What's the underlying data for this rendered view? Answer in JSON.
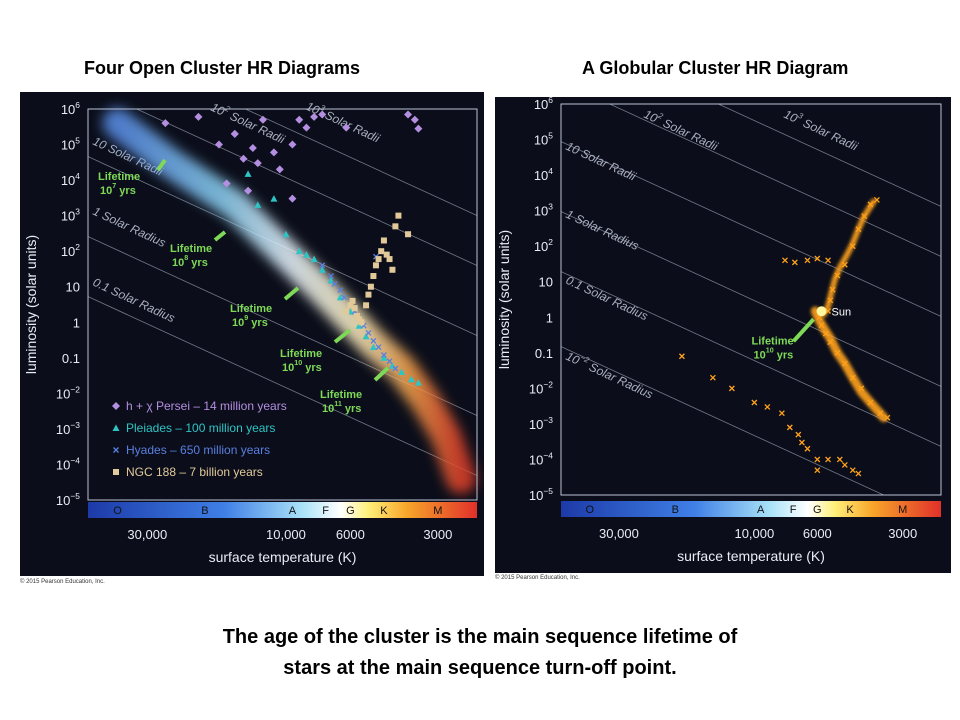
{
  "titles": {
    "left": "Four Open Cluster HR Diagrams",
    "right": "A Globular Cluster HR Diagram"
  },
  "copyright": "© 2015 Pearson Education, Inc.",
  "caption": {
    "line1": "The age of the cluster is the main sequence lifetime of",
    "line2": "stars at the main sequence turn-off point."
  },
  "colors": {
    "panel_bg": "#0b0e1a",
    "lifetime_green": "#7ed957",
    "persei": "#b48ee0",
    "pleiades": "#2ec4c4",
    "hyades": "#5a7fe0",
    "ngc188": "#e2c99a",
    "globular": "#ffa21a",
    "sun": "#fff6a0"
  },
  "chart_data": [
    {
      "type": "scatter",
      "title": "Four Open Cluster HR Diagrams",
      "xlabel": "surface temperature (K)",
      "ylabel": "luminosity (solar units)",
      "x_scale": "log, reversed",
      "x_ticks": [
        "30,000",
        "10,000",
        "6000",
        "3000"
      ],
      "y_ticks": [
        {
          "base": "10",
          "exp": "6"
        },
        {
          "base": "10",
          "exp": "5"
        },
        {
          "base": "10",
          "exp": "4"
        },
        {
          "base": "10",
          "exp": "3"
        },
        {
          "base": "10",
          "exp": "2"
        },
        {
          "base": "10",
          "exp": ""
        },
        {
          "base": "1",
          "exp": ""
        },
        {
          "base": "0.1",
          "exp": ""
        },
        {
          "base": "10",
          "exp": "−2"
        },
        {
          "base": "10",
          "exp": "−3"
        },
        {
          "base": "10",
          "exp": "−4"
        },
        {
          "base": "10",
          "exp": "−5"
        }
      ],
      "spectral_classes": [
        "O",
        "B",
        "A",
        "F",
        "G",
        "K",
        "M"
      ],
      "radius_lines": [
        {
          "base": "10",
          "exp": "2",
          "suffix": " Solar Radii"
        },
        {
          "base": "10",
          "exp": "3",
          "suffix": " Solar Radii"
        },
        {
          "base": "10",
          "exp": "",
          "suffix": " Solar Radii"
        },
        {
          "base": "1",
          "exp": "",
          "suffix": " Solar Radius"
        },
        {
          "base": "0.1",
          "exp": "",
          "suffix": " Solar Radius"
        }
      ],
      "lifetimes": [
        {
          "l1": "Lifetime",
          "base": "10",
          "exp": "7",
          "unit": " yrs"
        },
        {
          "l1": "Lifetime",
          "base": "10",
          "exp": "8",
          "unit": " yrs"
        },
        {
          "l1": "Lifetime",
          "base": "10",
          "exp": "9",
          "unit": " yrs"
        },
        {
          "l1": "Lifetime",
          "base": "10",
          "exp": "10",
          "unit": " yrs"
        },
        {
          "l1": "Lifetime",
          "base": "10",
          "exp": "11",
          "unit": " yrs"
        }
      ],
      "legend_placement": "bottom-left",
      "series": [
        {
          "name": "h + χ Persei – 14 million years",
          "marker": "diamond",
          "color": "#b48ee0",
          "points": [
            [
              26000,
              400000
            ],
            [
              20000,
              600000
            ],
            [
              15000,
              200000
            ],
            [
              12000,
              500000
            ],
            [
              9000,
              500000
            ],
            [
              8500,
              300000
            ],
            [
              8000,
              600000
            ],
            [
              13000,
              80000
            ],
            [
              11000,
              60000
            ],
            [
              9500,
              100000
            ],
            [
              12500,
              30000
            ],
            [
              7500,
              700000
            ],
            [
              6200,
              300000
            ],
            [
              3800,
              700000
            ],
            [
              3600,
              500000
            ],
            [
              3500,
              280000
            ],
            [
              17000,
              100000
            ],
            [
              14000,
              40000
            ],
            [
              10500,
              20000
            ],
            [
              16000,
              8000
            ],
            [
              13500,
              5000
            ],
            [
              9500,
              3000
            ],
            [
              15000,
              200000
            ]
          ]
        },
        {
          "name": "Pleiades – 100 million years",
          "marker": "triangle",
          "color": "#2ec4c4",
          "points": [
            [
              13500,
              15000
            ],
            [
              11000,
              3000
            ],
            [
              12500,
              2000
            ],
            [
              10000,
              300
            ],
            [
              8000,
              60
            ],
            [
              7000,
              15
            ],
            [
              6500,
              5
            ],
            [
              6000,
              2
            ],
            [
              5600,
              0.8
            ],
            [
              5300,
              0.4
            ],
            [
              5000,
              0.2
            ],
            [
              4600,
              0.1
            ],
            [
              4300,
              0.06
            ],
            [
              4000,
              0.04
            ],
            [
              3700,
              0.025
            ],
            [
              3500,
              0.02
            ],
            [
              9000,
              100
            ],
            [
              8500,
              80
            ],
            [
              7500,
              30
            ]
          ]
        },
        {
          "name": "Hyades – 650 million years",
          "marker": "cross",
          "color": "#5a7fe0",
          "points": [
            [
              7500,
              40
            ],
            [
              7000,
              20
            ],
            [
              6800,
              12
            ],
            [
              6500,
              8
            ],
            [
              6300,
              5
            ],
            [
              6000,
              3
            ],
            [
              5800,
              2
            ],
            [
              5600,
              1.2
            ],
            [
              5400,
              0.8
            ],
            [
              5200,
              0.5
            ],
            [
              5000,
              0.3
            ],
            [
              4800,
              0.2
            ],
            [
              4600,
              0.12
            ],
            [
              4400,
              0.08
            ],
            [
              4200,
              0.05
            ],
            [
              4900,
              70
            ]
          ]
        },
        {
          "name": "NGC 188 – 7 billion years",
          "marker": "square",
          "color": "#e2c99a",
          "points": [
            [
              6200,
              2
            ],
            [
              6000,
              3
            ],
            [
              5900,
              4
            ],
            [
              5800,
              2.5
            ],
            [
              5700,
              1.5
            ],
            [
              5600,
              1.2
            ],
            [
              5500,
              1
            ],
            [
              5300,
              3
            ],
            [
              5200,
              6
            ],
            [
              5100,
              10
            ],
            [
              5000,
              20
            ],
            [
              4900,
              40
            ],
            [
              4800,
              60
            ],
            [
              4700,
              100
            ],
            [
              4600,
              200
            ],
            [
              4500,
              80
            ],
            [
              4400,
              60
            ],
            [
              4300,
              30
            ],
            [
              4200,
              500
            ],
            [
              4100,
              1000
            ],
            [
              3800,
              300
            ]
          ]
        }
      ]
    },
    {
      "type": "scatter",
      "title": "A Globular Cluster HR Diagram",
      "xlabel": "surface temperature (K)",
      "ylabel": "luminosity (solar units)",
      "x_scale": "log, reversed",
      "x_ticks": [
        "30,000",
        "10,000",
        "6000",
        "3000"
      ],
      "spectral_classes": [
        "O",
        "B",
        "A",
        "F",
        "G",
        "K",
        "M"
      ],
      "radius_lines": [
        {
          "base": "10",
          "exp": "2",
          "suffix": " Solar Radii"
        },
        {
          "base": "10",
          "exp": "3",
          "suffix": " Solar Radii"
        },
        {
          "base": "10",
          "exp": "",
          "suffix": " Solar Radii"
        },
        {
          "base": "1",
          "exp": "",
          "suffix": " Solar Radius"
        },
        {
          "base": "0.1",
          "exp": "",
          "suffix": " Solar Radius"
        },
        {
          "base": "10",
          "exp": "−2",
          "suffix": " Solar Radius"
        }
      ],
      "annotations": [
        {
          "label": "Sun",
          "temperature": 5800,
          "luminosity": 1
        },
        {
          "l1": "Lifetime",
          "base": "10",
          "exp": "10",
          "unit": " yrs"
        }
      ],
      "series": [
        {
          "name": "",
          "marker": "cross",
          "color": "#ffa21a",
          "points": [
            [
              5900,
              1
            ],
            [
              5800,
              0.6
            ],
            [
              5600,
              0.35
            ],
            [
              5400,
              0.2
            ],
            [
              5100,
              0.1
            ],
            [
              4800,
              0.05
            ],
            [
              4500,
              0.02
            ],
            [
              4200,
              0.01
            ],
            [
              3900,
              0.004
            ],
            [
              3600,
              0.002
            ],
            [
              3400,
              0.0015
            ],
            [
              5500,
              1.5
            ],
            [
              5400,
              3
            ],
            [
              5300,
              6
            ],
            [
              5100,
              15
            ],
            [
              4800,
              30
            ],
            [
              4500,
              100
            ],
            [
              4300,
              300
            ],
            [
              4100,
              700
            ],
            [
              3900,
              1500
            ],
            [
              3700,
              2000
            ],
            [
              7800,
              40
            ],
            [
              7200,
              35
            ],
            [
              6500,
              40
            ],
            [
              6000,
              45
            ],
            [
              5500,
              40
            ],
            [
              18000,
              0.08
            ],
            [
              14000,
              0.02
            ],
            [
              12000,
              0.01
            ],
            [
              10000,
              0.004
            ],
            [
              9000,
              0.003
            ],
            [
              8000,
              0.002
            ],
            [
              7500,
              0.0008
            ],
            [
              7000,
              0.0005
            ],
            [
              6800,
              0.0003
            ],
            [
              6500,
              0.0002
            ],
            [
              6000,
              0.0001
            ],
            [
              5500,
              0.0001
            ],
            [
              5000,
              0.0001
            ],
            [
              4800,
              7e-05
            ],
            [
              4500,
              5e-05
            ],
            [
              4300,
              4e-05
            ],
            [
              6000,
              5e-05
            ]
          ]
        }
      ]
    }
  ]
}
